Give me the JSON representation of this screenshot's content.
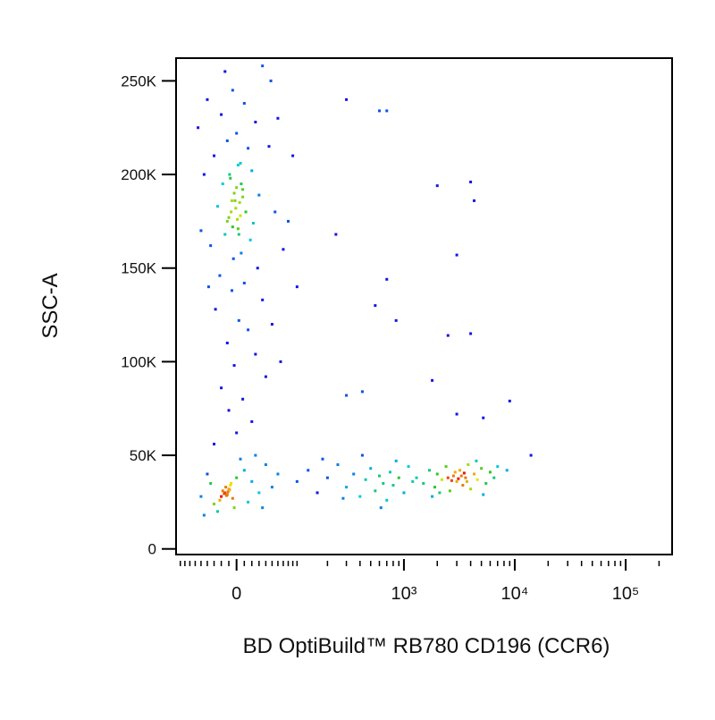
{
  "chart_data": {
    "type": "scatter",
    "xlabel": "BD OptiBuild™ RB780 CD196 (CCR6)",
    "ylabel": "SSC-A",
    "xscale": "biexponential",
    "xlim": [
      -100,
      262144
    ],
    "ylim": [
      -3000,
      262144
    ],
    "xticks": [
      0,
      {
        "value": 1000,
        "label": "10³"
      },
      {
        "value": 10000,
        "label": "10⁴"
      },
      {
        "value": 100000,
        "label": "10⁵"
      }
    ],
    "yticks": [
      0,
      {
        "value": 50000,
        "label": "50K"
      },
      {
        "value": 100000,
        "label": "100K"
      },
      {
        "value": 150000,
        "label": "150K"
      },
      {
        "value": 200000,
        "label": "200K"
      },
      {
        "value": 250000,
        "label": "250K"
      }
    ],
    "x": [
      -5,
      10,
      -20,
      25,
      0,
      -12,
      15,
      -30,
      5,
      20,
      -8,
      -18,
      8,
      30,
      -2,
      -25,
      12,
      -10,
      22,
      2,
      -15,
      18,
      -35,
      6,
      -4,
      28,
      -22,
      10,
      -6,
      35,
      -28,
      3,
      15,
      -12,
      25,
      -3,
      40,
      -20,
      8,
      -10,
      20,
      0,
      -30,
      -3,
      4,
      -7,
      1,
      -5,
      6,
      -9,
      2,
      -1,
      8,
      -12,
      3,
      0,
      -6,
      5,
      45,
      -45,
      55,
      -50,
      60,
      70,
      -40,
      50,
      -38,
      65,
      80,
      90,
      -55,
      100,
      48,
      -15,
      35,
      -15,
      -10,
      -20,
      -8,
      -12,
      -18,
      -5,
      -14,
      -11,
      -16,
      -9,
      -13,
      -7,
      -22,
      0,
      10,
      -30,
      20,
      30,
      -40,
      15,
      40,
      -25,
      5,
      -35,
      25,
      -3,
      50,
      -50,
      60,
      35,
      -45,
      100,
      130,
      160,
      200,
      250,
      300,
      350,
      400,
      450,
      500,
      550,
      600,
      650,
      700,
      750,
      800,
      900,
      1000,
      1100,
      1200,
      180,
      280,
      420,
      620,
      850,
      1300,
      1500,
      1700,
      1900,
      2000,
      2200,
      2400,
      2600,
      2800,
      3000,
      3200,
      3400,
      3600,
      3800,
      4000,
      4300,
      4600,
      5000,
      5500,
      6000,
      6500,
      2500,
      3300,
      2900,
      3700,
      2100,
      4500,
      1800,
      5200,
      7000,
      3100,
      2700,
      3500,
      8500,
      14000,
      300,
      600,
      700,
      2000,
      4000,
      4300,
      3000,
      240,
      700,
      550,
      850,
      2500,
      4000,
      1800,
      300,
      420,
      9000,
      5200,
      3000
    ],
    "values": [
      245000,
      238000,
      232000,
      228000,
      222000,
      218000,
      214000,
      210000,
      206000,
      202000,
      198000,
      195000,
      192000,
      189000,
      186000,
      183000,
      180000,
      177000,
      174000,
      171000,
      168000,
      165000,
      162000,
      158000,
      155000,
      150000,
      146000,
      142000,
      138000,
      133000,
      128000,
      122000,
      117000,
      110000,
      104000,
      98000,
      92000,
      86000,
      80000,
      74000,
      68000,
      62000,
      56000,
      190000,
      185000,
      180000,
      176000,
      172000,
      195000,
      200000,
      205000,
      182000,
      188000,
      175000,
      168000,
      193000,
      186000,
      178000,
      215000,
      200000,
      180000,
      170000,
      230000,
      160000,
      240000,
      120000,
      140000,
      100000,
      175000,
      210000,
      225000,
      140000,
      250000,
      255000,
      258000,
      30000,
      32000,
      28000,
      34000,
      29000,
      31000,
      27000,
      33000,
      30500,
      29500,
      31500,
      28500,
      35000,
      26000,
      38000,
      42000,
      24000,
      36000,
      30000,
      40000,
      25000,
      45000,
      20000,
      48000,
      35000,
      50000,
      22000,
      33000,
      28000,
      40000,
      22000,
      18000,
      36000,
      42000,
      30000,
      38000,
      45000,
      33000,
      40000,
      28000,
      37000,
      43000,
      31000,
      39000,
      35000,
      26000,
      41000,
      34000,
      38000,
      30000,
      44000,
      36000,
      48000,
      27000,
      50000,
      22000,
      47000,
      38000,
      35000,
      42000,
      33000,
      40000,
      37000,
      44000,
      31000,
      39000,
      36000,
      42000,
      34000,
      38000,
      45000,
      32000,
      40000,
      37000,
      43000,
      35000,
      41000,
      38000,
      38000,
      39000,
      41000,
      36000,
      30000,
      47000,
      28000,
      29000,
      44000,
      37500,
      36500,
      40500,
      42000,
      50000,
      240000,
      234000,
      234000,
      194000,
      196000,
      186000,
      157000,
      168000,
      144000,
      130000,
      122000,
      114000,
      115000,
      90000,
      82000,
      84000,
      79000,
      70000,
      72000
    ]
  }
}
